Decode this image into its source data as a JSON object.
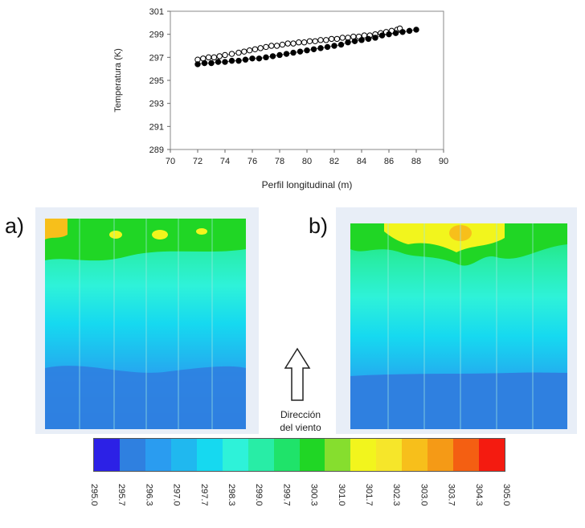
{
  "chart_data": [
    {
      "type": "scatter",
      "title": "",
      "xlabel": "Perfil longitudinal (m)",
      "ylabel": "Temperatura (K)",
      "xlim": [
        70,
        90
      ],
      "ylim": [
        289,
        301
      ],
      "xticks": [
        "70",
        "72",
        "74",
        "76",
        "78",
        "80",
        "82",
        "84",
        "86",
        "88",
        "90"
      ],
      "yticks": [
        "289",
        "291",
        "293",
        "295",
        "297",
        "299",
        "301"
      ],
      "grid": false,
      "series": [
        {
          "marker": "open-circle",
          "color": "#000000",
          "x": [
            72.0,
            72.4,
            72.8,
            73.2,
            73.6,
            74.0,
            74.5,
            75.0,
            75.4,
            75.8,
            76.2,
            76.6,
            77.0,
            77.4,
            77.8,
            78.2,
            78.6,
            79.0,
            79.4,
            79.8,
            80.2,
            80.6,
            81.0,
            81.4,
            81.8,
            82.2,
            82.6,
            83.0,
            83.4,
            83.8,
            84.2,
            84.6,
            85.0,
            85.4,
            85.8,
            86.2,
            86.6,
            86.8
          ],
          "y": [
            296.8,
            296.9,
            297.0,
            297.0,
            297.1,
            297.2,
            297.3,
            297.4,
            297.5,
            297.6,
            297.7,
            297.8,
            297.9,
            298.0,
            298.0,
            298.1,
            298.2,
            298.2,
            298.3,
            298.3,
            298.4,
            298.4,
            298.5,
            298.5,
            298.6,
            298.6,
            298.7,
            298.7,
            298.8,
            298.8,
            298.9,
            298.9,
            299.0,
            299.1,
            299.2,
            299.3,
            299.4,
            299.5
          ]
        },
        {
          "marker": "filled-circle",
          "color": "#000000",
          "x": [
            72.0,
            72.5,
            73.0,
            73.5,
            74.0,
            74.5,
            75.0,
            75.5,
            76.0,
            76.5,
            77.0,
            77.5,
            78.0,
            78.5,
            79.0,
            79.5,
            80.0,
            80.5,
            81.0,
            81.5,
            82.0,
            82.5,
            83.0,
            83.5,
            84.0,
            84.5,
            85.0,
            85.5,
            86.0,
            86.5,
            87.0,
            87.5,
            88.0
          ],
          "y": [
            296.4,
            296.5,
            296.5,
            296.6,
            296.6,
            296.7,
            296.7,
            296.8,
            296.9,
            296.9,
            297.0,
            297.1,
            297.2,
            297.3,
            297.4,
            297.5,
            297.6,
            297.7,
            297.8,
            297.9,
            298.0,
            298.1,
            298.3,
            298.4,
            298.5,
            298.6,
            298.7,
            298.9,
            299.0,
            299.1,
            299.2,
            299.3,
            299.4
          ]
        }
      ]
    },
    {
      "type": "heatmap",
      "label": "a)",
      "colorbar_ticks": [
        "295.0",
        "295.7",
        "296.3",
        "297.0",
        "297.7",
        "298.3",
        "299.0",
        "299.7",
        "300.3",
        "301.0",
        "301.7",
        "302.3",
        "303.0",
        "303.7",
        "304.3",
        "305.0"
      ],
      "colorbar_colors": [
        "#2c21e6",
        "#2f80e0",
        "#2a9cf0",
        "#20b8ef",
        "#16d9f0",
        "#2ef2d9",
        "#28eda6",
        "#1fe36a",
        "#20d625",
        "#86de2e",
        "#f2f51d",
        "#f6e62a",
        "#f7bf1b",
        "#f59a16",
        "#f45f12",
        "#f41b10"
      ]
    },
    {
      "type": "heatmap",
      "label": "b)"
    }
  ],
  "annotation": {
    "wind_line1": "Dirección",
    "wind_line2": "del viento"
  }
}
